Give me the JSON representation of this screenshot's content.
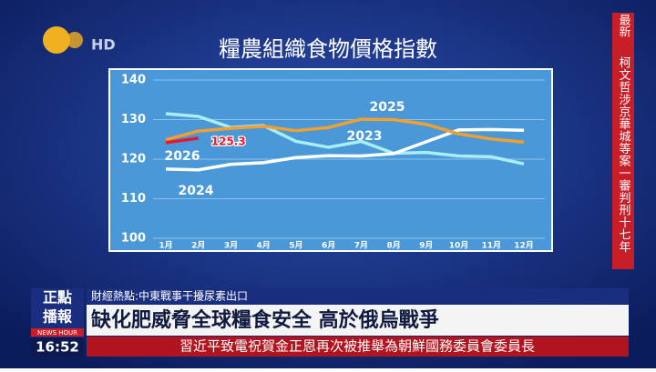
{
  "channel": {
    "logo": "HD",
    "show_top": "正點",
    "show_bottom": "播報",
    "show_en": "NEWS HOUR",
    "time": "16:52"
  },
  "breaking": {
    "tag": "最新",
    "text": "柯文哲涉京華城等案一審判刑十七年"
  },
  "lower_third": {
    "topic": "財經熱點:中東戰事干擾尿素出口",
    "headline": "缺化肥威脅全球糧食安全 高於俄烏戰爭",
    "ticker": "習近平致電祝賀金正恩再次被推舉為朝鮮國務委員會委員長"
  },
  "chart_data": {
    "type": "line",
    "title": "糧農組織食物價格指數",
    "categories": [
      "1月",
      "2月",
      "3月",
      "4月",
      "5月",
      "6月",
      "7月",
      "8月",
      "9月",
      "10月",
      "11月",
      "12月"
    ],
    "ylim": [
      100,
      140
    ],
    "yticks": [
      100,
      110,
      120,
      130,
      140
    ],
    "grid": true,
    "series": [
      {
        "name": "2023",
        "color": "#a8eef5",
        "values": [
          131.5,
          130.8,
          128,
          128.5,
          124.5,
          123,
          124.5,
          121.5,
          121.7,
          120.8,
          120.6,
          118.8
        ]
      },
      {
        "name": "2024",
        "color": "#ffffff",
        "values": [
          117.5,
          117.3,
          118.7,
          119.1,
          120.4,
          120.9,
          120.8,
          121.4,
          124.4,
          127.4,
          127.5,
          127.3
        ]
      },
      {
        "name": "2025",
        "color": "#f0a030",
        "values": [
          124.9,
          127.1,
          127.8,
          128.3,
          127.2,
          128,
          130.1,
          130,
          128.8,
          126.4,
          125.1,
          124.3
        ]
      },
      {
        "name": "2026",
        "color": "#e8192c",
        "values": [
          124.2,
          125.3,
          null,
          null,
          null,
          null,
          null,
          null,
          null,
          null,
          null,
          null
        ],
        "value_labels": [
          null,
          "125.3",
          null,
          null,
          null,
          null,
          null,
          null,
          null,
          null,
          null,
          null
        ]
      }
    ]
  }
}
